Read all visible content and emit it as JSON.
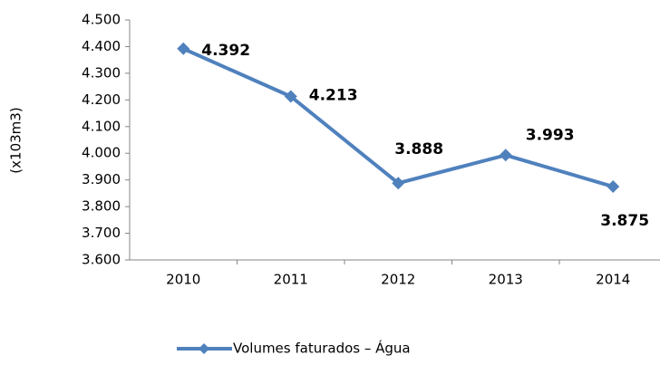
{
  "chart_data": {
    "type": "line",
    "y_label": "(x103m3)",
    "categories": [
      "2010",
      "2011",
      "2012",
      "2013",
      "2014"
    ],
    "series": [
      {
        "name": "Volumes faturados – Água",
        "color": "#4f81bd",
        "values": [
          4392,
          4213,
          3888,
          3993,
          3875
        ],
        "value_labels": [
          "4.392",
          "4.213",
          "3.888",
          "3.993",
          "3.875"
        ]
      }
    ],
    "ylim": [
      3600,
      4500
    ],
    "yticks": [
      {
        "value": 3600,
        "label": "3.600"
      },
      {
        "value": 3700,
        "label": "3.700"
      },
      {
        "value": 3800,
        "label": "3.800"
      },
      {
        "value": 3900,
        "label": "3.900"
      },
      {
        "value": 4000,
        "label": "4.000"
      },
      {
        "value": 4100,
        "label": "4.100"
      },
      {
        "value": 4200,
        "label": "4.200"
      },
      {
        "value": 4300,
        "label": "4.300"
      },
      {
        "value": 4400,
        "label": "4.400"
      },
      {
        "value": 4500,
        "label": "4.500"
      }
    ],
    "legend": "bottom"
  }
}
